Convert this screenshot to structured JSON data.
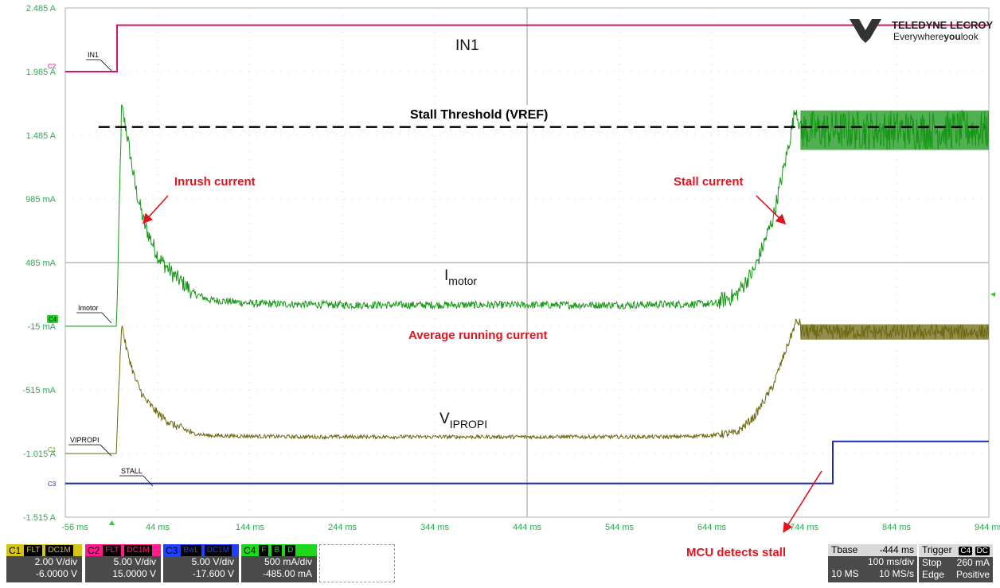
{
  "chart_data": {
    "type": "line",
    "brand": {
      "name": "TELEDYNE LECROY",
      "tagline_pre": "Everywhere",
      "tagline_you": "you",
      "tagline_post": "look"
    },
    "y_ticks": [
      "2.485 A",
      "1.985 A",
      "1.485 A",
      "985 mA",
      "485 mA",
      "-15 mA",
      "-515 mA",
      "-1.015 A",
      "-1.515 A"
    ],
    "x_ticks": [
      "-56 ms",
      "44 ms",
      "144 ms",
      "244 ms",
      "344 ms",
      "444 ms",
      "544 ms",
      "644 ms",
      "744 ms",
      "844 ms",
      "944 ms"
    ],
    "ylim": [
      -1.515,
      2.485
    ],
    "xlim": [
      -56,
      944
    ],
    "grid": true,
    "trace_labels": {
      "in1": "IN1",
      "imotor": "Imotor",
      "vipropi": "VIPROPI",
      "stall": "STALL"
    },
    "channel_markers": {
      "c2": "C2",
      "c4": "C4",
      "c1": "C1",
      "c3": "C3"
    },
    "annotations": {
      "in1_big": "IN1",
      "imotor_main": "I",
      "imotor_sub": "motor",
      "vipropi_main": "V",
      "vipropi_sub": "IPROPI",
      "stall_threshold": "Stall Threshold (VREF)",
      "inrush": "Inrush current",
      "stall_current": "Stall current",
      "avg_running": "Average running current",
      "mcu": "MCU detects stall"
    },
    "series": [
      {
        "name": "IN1",
        "channel": "C2",
        "color": "#d6136b",
        "points": [
          [
            -56,
            1.985
          ],
          [
            0,
            1.985
          ],
          [
            0,
            2.35
          ],
          [
            944,
            2.35
          ]
        ]
      },
      {
        "name": "Imotor",
        "channel": "C4",
        "color": "#179617",
        "points": [
          [
            -56,
            -0.015
          ],
          [
            0,
            -0.015
          ],
          [
            0,
            0.1
          ],
          [
            5,
            1.68
          ],
          [
            10,
            1.5
          ],
          [
            20,
            1.05
          ],
          [
            30,
            0.75
          ],
          [
            45,
            0.5
          ],
          [
            60,
            0.37
          ],
          [
            80,
            0.24
          ],
          [
            100,
            0.18
          ],
          [
            150,
            0.15
          ],
          [
            250,
            0.14
          ],
          [
            400,
            0.14
          ],
          [
            550,
            0.14
          ],
          [
            650,
            0.15
          ],
          [
            670,
            0.2
          ],
          [
            690,
            0.4
          ],
          [
            710,
            0.8
          ],
          [
            725,
            1.3
          ],
          [
            735,
            1.68
          ],
          [
            740,
            1.5
          ],
          [
            944,
            1.5
          ]
        ],
        "stall_band": [
          1.37,
          1.68
        ]
      },
      {
        "name": "VIPROPI",
        "channel": "C1",
        "color": "#6e6812",
        "points": [
          [
            -56,
            -1.015
          ],
          [
            0,
            -1.015
          ],
          [
            0,
            -0.85
          ],
          [
            5,
            -0.01
          ],
          [
            10,
            -0.2
          ],
          [
            20,
            -0.45
          ],
          [
            30,
            -0.6
          ],
          [
            45,
            -0.72
          ],
          [
            60,
            -0.8
          ],
          [
            80,
            -0.86
          ],
          [
            100,
            -0.88
          ],
          [
            200,
            -0.89
          ],
          [
            400,
            -0.89
          ],
          [
            600,
            -0.89
          ],
          [
            670,
            -0.87
          ],
          [
            690,
            -0.74
          ],
          [
            710,
            -0.5
          ],
          [
            725,
            -0.2
          ],
          [
            735,
            0.0
          ],
          [
            944,
            -0.05
          ]
        ],
        "stall_band": [
          -0.12,
          0.0
        ]
      },
      {
        "name": "STALL",
        "channel": "C3",
        "color": "#1c2fb0",
        "points": [
          [
            -56,
            -1.25
          ],
          [
            775,
            -1.25
          ],
          [
            775,
            -0.92
          ],
          [
            944,
            -0.92
          ]
        ]
      }
    ],
    "stall_threshold_value": 1.55,
    "trigger_time_ms": 0
  },
  "channels": [
    {
      "name": "C1",
      "tags": [
        "FLT",
        "DC1M"
      ],
      "color": "#d4c41a",
      "vdiv": "2.00 V/div",
      "offset": "-6.0000 V"
    },
    {
      "name": "C2",
      "tags": [
        "FLT",
        "DC1M"
      ],
      "color": "#ff1b8d",
      "vdiv": "5.00 V/div",
      "offset": "15.0000 V"
    },
    {
      "name": "C3",
      "tags": [
        "BwL",
        "DC1M"
      ],
      "color": "#2040ff",
      "vdiv": "5.00 V/div",
      "offset": "-17.600 V"
    },
    {
      "name": "C4",
      "tags": [
        "F",
        "B",
        "D"
      ],
      "color": "#1ed81e",
      "vdiv": "500 mA/div",
      "offset": "-485.00 mA"
    }
  ],
  "timebase": {
    "label": "Tbase",
    "offset": "-444 ms",
    "div": "100 ms/div",
    "samples": "10 MS",
    "rate": "10 MS/s"
  },
  "trigger": {
    "label": "Trigger",
    "ch": "C4",
    "coupling": "DC",
    "mode": "Stop",
    "level": "260 mA",
    "type": "Edge",
    "slope": "Positive"
  }
}
